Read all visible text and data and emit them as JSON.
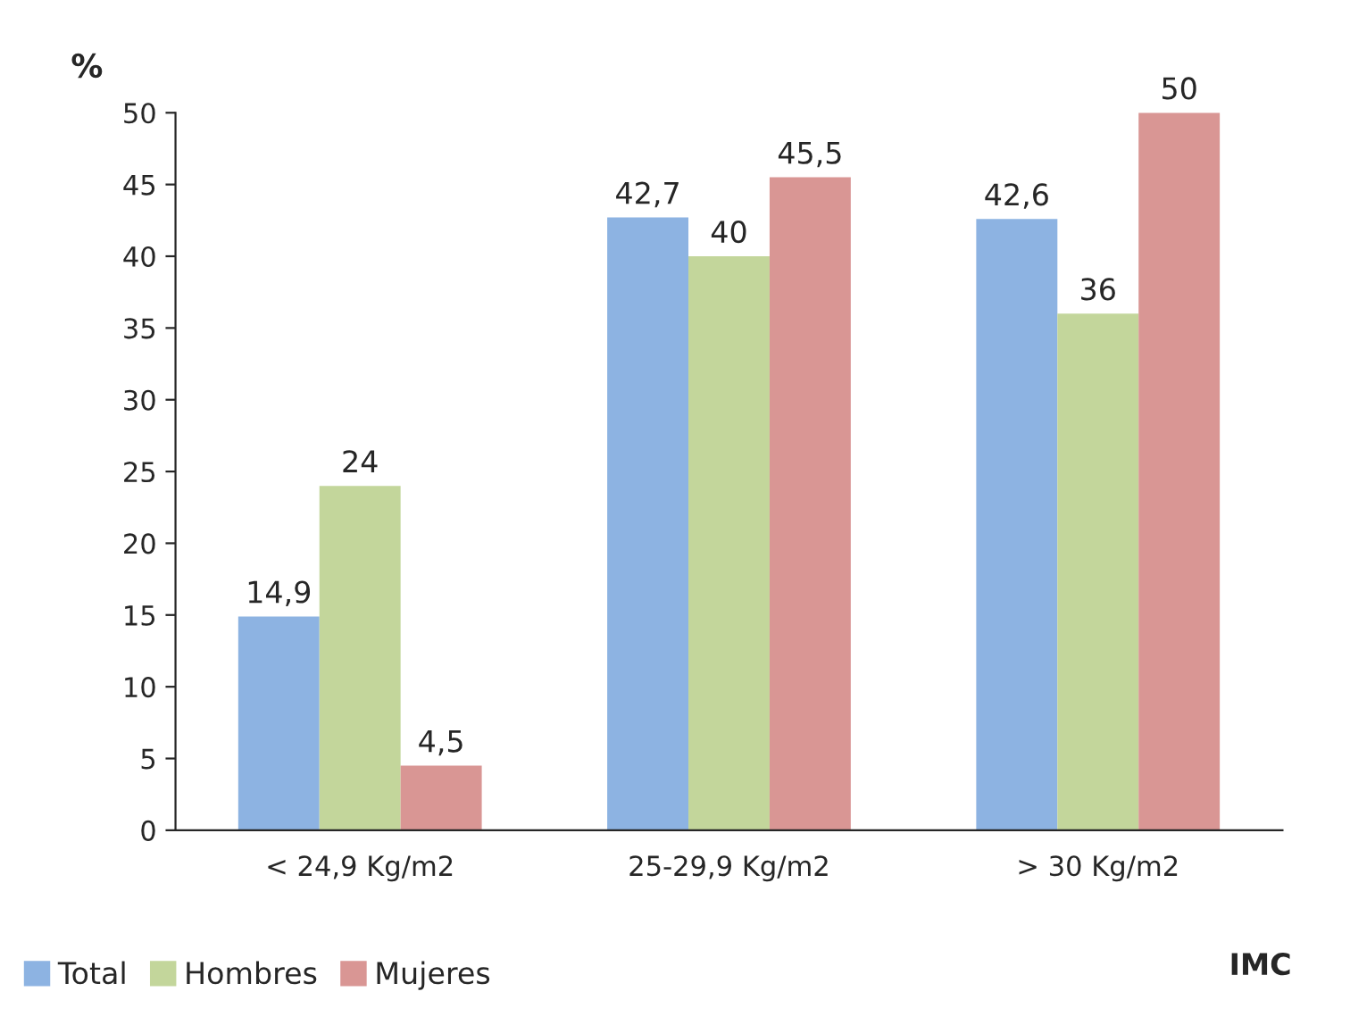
{
  "chart_data": {
    "type": "bar",
    "ylabel": "%",
    "xlabel": "IMC",
    "categories": [
      "< 24,9 Kg/m2",
      "25-29,9 Kg/m2",
      "> 30 Kg/m2"
    ],
    "series": [
      {
        "name": "Total",
        "color": "#8db3e2",
        "values": [
          14.9,
          42.7,
          42.6
        ],
        "value_labels": [
          "14,9",
          "42,7",
          "42,6"
        ]
      },
      {
        "name": "Hombres",
        "color": "#c3d69b",
        "values": [
          24,
          40,
          36
        ],
        "value_labels": [
          "24",
          "40",
          "36"
        ]
      },
      {
        "name": "Mujeres",
        "color": "#d99694",
        "values": [
          4.5,
          45.5,
          50
        ],
        "value_labels": [
          "4,5",
          "45,5",
          "50"
        ]
      }
    ],
    "ylim": [
      0,
      50
    ],
    "yticks": [
      0,
      5,
      10,
      15,
      20,
      25,
      30,
      35,
      40,
      45,
      50
    ],
    "grid": false,
    "legend": "bottom left"
  }
}
